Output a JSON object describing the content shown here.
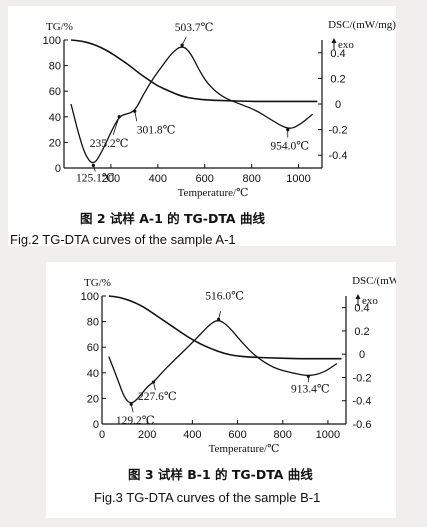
{
  "chart_data": [
    {
      "type": "line",
      "title": "",
      "caption_cn": "图 2 试样 A-1 的 TG-DTA 曲线",
      "caption_en": "Fig.2  TG-DTA curves of the sample A-1",
      "xlabel": "Temperature/℃",
      "ylabel_left": "TG/%",
      "ylabel_right": "DSC/(mW/mg)",
      "right_annotation": "exo",
      "xlim": [
        0,
        1100
      ],
      "xticks": [
        "200",
        "400",
        "600",
        "800",
        "1000"
      ],
      "ylim_left": [
        0,
        100
      ],
      "yticks_left": [
        "0",
        "20",
        "40",
        "60",
        "80",
        "100"
      ],
      "ylim_right": [
        -0.5,
        0.5
      ],
      "yticks_right": [
        "0.4",
        "0.2",
        "0",
        "-0.2",
        "-0.4"
      ],
      "series": [
        {
          "axis": "left",
          "x": [
            30,
            80,
            120,
            160,
            200,
            240,
            280,
            320,
            360,
            400,
            450,
            500,
            560,
            620,
            700,
            800,
            900,
            1000,
            1080
          ],
          "values": [
            100,
            99,
            97,
            94,
            90,
            85,
            80,
            74,
            69,
            64,
            60,
            56,
            54,
            53,
            52.5,
            52,
            52,
            52,
            52
          ]
        },
        {
          "axis": "right",
          "x": [
            30,
            60,
            90,
            125,
            160,
            200,
            235,
            260,
            301,
            340,
            380,
            420,
            460,
            503.7,
            540,
            580,
            620,
            680,
            750,
            820,
            880,
            954,
            1000,
            1060
          ],
          "values": [
            0.0,
            -0.22,
            -0.4,
            -0.48,
            -0.38,
            -0.22,
            -0.1,
            -0.08,
            -0.06,
            0.08,
            0.2,
            0.3,
            0.4,
            0.46,
            0.4,
            0.25,
            0.14,
            0.05,
            0.0,
            -0.05,
            -0.12,
            -0.2,
            -0.17,
            -0.08
          ]
        }
      ],
      "annotations": [
        {
          "label": "503.7℃",
          "x": 503.7
        },
        {
          "label": "235.2℃",
          "x": 235.2
        },
        {
          "label": "301.8℃",
          "x": 301.8
        },
        {
          "label": "125.1℃",
          "x": 125.1
        },
        {
          "label": "954.0℃",
          "x": 954.0
        }
      ]
    },
    {
      "type": "line",
      "title": "",
      "caption_cn": "图 3 试样 B-1 的 TG-DTA 曲线",
      "caption_en": "Fig.3  TG-DTA curves of the sample B-1",
      "xlabel": "Temperature/℃",
      "ylabel_left": "TG/%",
      "ylabel_right": "DSC/(mW/mg)",
      "right_annotation": "exo",
      "xlim": [
        0,
        1080
      ],
      "xticks": [
        "0",
        "200",
        "400",
        "600",
        "800",
        "1000"
      ],
      "ylim_left": [
        0,
        100
      ],
      "yticks_left": [
        "0",
        "20",
        "40",
        "60",
        "80",
        "100"
      ],
      "ylim_right": [
        -0.6,
        0.5
      ],
      "yticks_right": [
        "0.4",
        "0.2",
        "0",
        "-0.2",
        "-0.4",
        "-0.6"
      ],
      "series": [
        {
          "axis": "left",
          "x": [
            30,
            80,
            130,
            180,
            230,
            280,
            330,
            380,
            430,
            480,
            540,
            600,
            680,
            780,
            880,
            980,
            1060
          ],
          "values": [
            100,
            99,
            96,
            92,
            86,
            80,
            74,
            68,
            63,
            59,
            55,
            53,
            52,
            51.5,
            51,
            51,
            51
          ]
        },
        {
          "axis": "right",
          "x": [
            30,
            70,
            100,
            129.2,
            160,
            200,
            227.6,
            260,
            320,
            380,
            440,
            480,
            516,
            560,
            620,
            680,
            760,
            840,
            913.4,
            980,
            1040
          ],
          "values": [
            -0.02,
            -0.22,
            -0.38,
            -0.43,
            -0.38,
            -0.28,
            -0.24,
            -0.17,
            -0.05,
            0.06,
            0.18,
            0.26,
            0.3,
            0.24,
            0.1,
            -0.02,
            -0.12,
            -0.16,
            -0.19,
            -0.16,
            -0.08
          ]
        }
      ],
      "annotations": [
        {
          "label": "516.0℃",
          "x": 516.0
        },
        {
          "label": "227.6℃",
          "x": 227.6
        },
        {
          "label": "129.2℃",
          "x": 129.2
        },
        {
          "label": "913.4℃",
          "x": 913.4
        }
      ]
    }
  ]
}
